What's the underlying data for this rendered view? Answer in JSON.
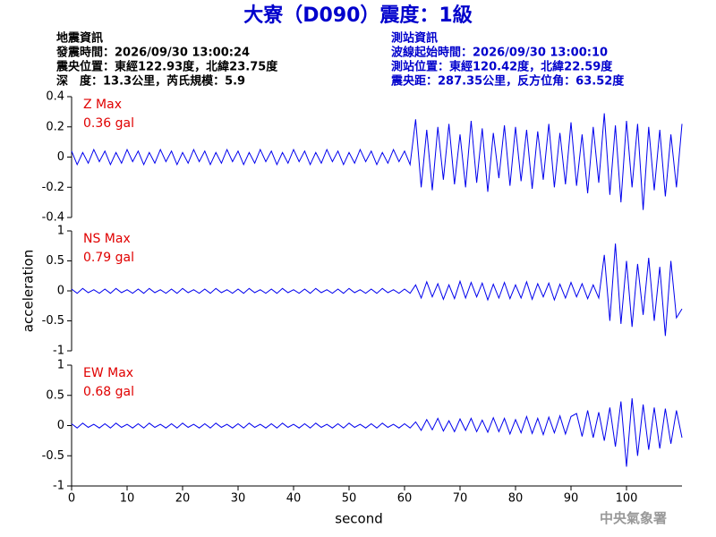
{
  "header": {
    "title": "大寮（D090）震度：1級",
    "left": [
      "地震資訊",
      "發震時間：2026/09/30 13:00:24",
      "震央位置：東經122.93度，北緯23.75度",
      "深　度：13.3公里，芮氏規模：5.9"
    ],
    "right": [
      "測站資訊",
      "波線起始時間：2026/09/30 13:00:10",
      "測站位置：東經120.42度，北緯22.59度",
      "震央距：287.35公里，反方位角：63.52度"
    ]
  },
  "footer": "中央氣象署",
  "chart_data": [
    {
      "type": "line",
      "title": "Z Max",
      "annotation": "0.36 gal",
      "xlim": [
        0,
        110
      ],
      "ylim": [
        -0.4,
        0.4
      ],
      "yticks": [
        -0.4,
        -0.2,
        0,
        0.2,
        0.4
      ],
      "x": [
        0,
        1,
        2,
        3,
        4,
        5,
        6,
        7,
        8,
        9,
        10,
        11,
        12,
        13,
        14,
        15,
        16,
        17,
        18,
        19,
        20,
        21,
        22,
        23,
        24,
        25,
        26,
        27,
        28,
        29,
        30,
        31,
        32,
        33,
        34,
        35,
        36,
        37,
        38,
        39,
        40,
        41,
        42,
        43,
        44,
        45,
        46,
        47,
        48,
        49,
        50,
        51,
        52,
        53,
        54,
        55,
        56,
        57,
        58,
        59,
        60,
        61,
        62,
        63,
        64,
        65,
        66,
        67,
        68,
        69,
        70,
        71,
        72,
        73,
        74,
        75,
        76,
        77,
        78,
        79,
        80,
        81,
        82,
        83,
        84,
        85,
        86,
        87,
        88,
        89,
        90,
        91,
        92,
        93,
        94,
        95,
        96,
        97,
        98,
        99,
        100,
        101,
        102,
        103,
        104,
        105,
        106,
        107,
        108,
        109,
        110
      ],
      "series": [
        {
          "color": "#0000ee",
          "values": [
            0.04,
            -0.05,
            0.03,
            -0.04,
            0.05,
            -0.03,
            0.04,
            -0.05,
            0.03,
            -0.04,
            0.05,
            -0.03,
            0.04,
            -0.05,
            0.03,
            -0.04,
            0.05,
            -0.03,
            0.04,
            -0.05,
            0.03,
            -0.04,
            0.05,
            -0.03,
            0.04,
            -0.05,
            0.03,
            -0.04,
            0.05,
            -0.03,
            0.04,
            -0.05,
            0.03,
            -0.04,
            0.05,
            -0.03,
            0.04,
            -0.05,
            0.03,
            -0.04,
            0.05,
            -0.03,
            0.04,
            -0.05,
            0.03,
            -0.04,
            0.05,
            -0.03,
            0.04,
            -0.05,
            0.03,
            -0.04,
            0.05,
            -0.03,
            0.04,
            -0.05,
            0.03,
            -0.04,
            0.05,
            -0.03,
            0.04,
            -0.05,
            0.25,
            -0.2,
            0.18,
            -0.22,
            0.2,
            -0.15,
            0.22,
            -0.18,
            0.15,
            -0.2,
            0.24,
            -0.17,
            0.19,
            -0.23,
            0.16,
            -0.14,
            0.21,
            -0.19,
            0.2,
            -0.16,
            0.18,
            -0.21,
            0.17,
            -0.15,
            0.22,
            -0.2,
            0.16,
            -0.18,
            0.23,
            -0.19,
            0.15,
            -0.24,
            0.2,
            -0.17,
            0.29,
            -0.25,
            0.21,
            -0.3,
            0.24,
            -0.2,
            0.22,
            -0.35,
            0.2,
            -0.22,
            0.18,
            -0.26,
            0.15,
            -0.2,
            0.22
          ]
        }
      ]
    },
    {
      "type": "line",
      "title": "NS Max",
      "annotation": "0.79 gal",
      "ylabel": "acceleration",
      "xlim": [
        0,
        110
      ],
      "ylim": [
        -1,
        1
      ],
      "yticks": [
        -1,
        -0.5,
        0,
        0.5,
        1
      ],
      "x": [
        0,
        1,
        2,
        3,
        4,
        5,
        6,
        7,
        8,
        9,
        10,
        11,
        12,
        13,
        14,
        15,
        16,
        17,
        18,
        19,
        20,
        21,
        22,
        23,
        24,
        25,
        26,
        27,
        28,
        29,
        30,
        31,
        32,
        33,
        34,
        35,
        36,
        37,
        38,
        39,
        40,
        41,
        42,
        43,
        44,
        45,
        46,
        47,
        48,
        49,
        50,
        51,
        52,
        53,
        54,
        55,
        56,
        57,
        58,
        59,
        60,
        61,
        62,
        63,
        64,
        65,
        66,
        67,
        68,
        69,
        70,
        71,
        72,
        73,
        74,
        75,
        76,
        77,
        78,
        79,
        80,
        81,
        82,
        83,
        84,
        85,
        86,
        87,
        88,
        89,
        90,
        91,
        92,
        93,
        94,
        95,
        96,
        97,
        98,
        99,
        100,
        101,
        102,
        103,
        104,
        105,
        106,
        107,
        108,
        109,
        110
      ],
      "series": [
        {
          "color": "#0000ee",
          "values": [
            0.03,
            -0.04,
            0.04,
            -0.03,
            0.02,
            -0.04,
            0.03,
            -0.04,
            0.04,
            -0.03,
            0.02,
            -0.04,
            0.03,
            -0.04,
            0.04,
            -0.03,
            0.02,
            -0.04,
            0.03,
            -0.04,
            0.04,
            -0.03,
            0.02,
            -0.04,
            0.03,
            -0.04,
            0.04,
            -0.03,
            0.02,
            -0.04,
            0.03,
            -0.04,
            0.04,
            -0.03,
            0.02,
            -0.04,
            0.03,
            -0.04,
            0.04,
            -0.03,
            0.02,
            -0.04,
            0.03,
            -0.04,
            0.04,
            -0.03,
            0.02,
            -0.04,
            0.03,
            -0.04,
            0.04,
            -0.03,
            0.02,
            -0.04,
            0.03,
            -0.04,
            0.04,
            -0.03,
            0.02,
            -0.04,
            0.03,
            -0.04,
            0.1,
            -0.12,
            0.15,
            -0.1,
            0.12,
            -0.14,
            0.1,
            -0.13,
            0.16,
            -0.12,
            0.14,
            -0.1,
            0.13,
            -0.15,
            0.11,
            -0.12,
            0.14,
            -0.13,
            0.1,
            -0.12,
            0.15,
            -0.14,
            0.12,
            -0.1,
            0.13,
            -0.15,
            0.11,
            -0.12,
            0.14,
            -0.1,
            0.12,
            -0.13,
            0.1,
            -0.12,
            0.6,
            -0.5,
            0.79,
            -0.55,
            0.5,
            -0.6,
            0.45,
            -0.4,
            0.55,
            -0.5,
            0.4,
            -0.75,
            0.5,
            -0.45,
            -0.3
          ]
        }
      ]
    },
    {
      "type": "line",
      "title": "EW Max",
      "annotation": "0.68 gal",
      "xlabel": "second",
      "xlim": [
        0,
        110
      ],
      "ylim": [
        -1,
        1
      ],
      "yticks": [
        -1,
        -0.5,
        0,
        0.5,
        1
      ],
      "xticks": [
        0,
        10,
        20,
        30,
        40,
        50,
        60,
        70,
        80,
        90,
        100
      ],
      "x": [
        0,
        1,
        2,
        3,
        4,
        5,
        6,
        7,
        8,
        9,
        10,
        11,
        12,
        13,
        14,
        15,
        16,
        17,
        18,
        19,
        20,
        21,
        22,
        23,
        24,
        25,
        26,
        27,
        28,
        29,
        30,
        31,
        32,
        33,
        34,
        35,
        36,
        37,
        38,
        39,
        40,
        41,
        42,
        43,
        44,
        45,
        46,
        47,
        48,
        49,
        50,
        51,
        52,
        53,
        54,
        55,
        56,
        57,
        58,
        59,
        60,
        61,
        62,
        63,
        64,
        65,
        66,
        67,
        68,
        69,
        70,
        71,
        72,
        73,
        74,
        75,
        76,
        77,
        78,
        79,
        80,
        81,
        82,
        83,
        84,
        85,
        86,
        87,
        88,
        89,
        90,
        91,
        92,
        93,
        94,
        95,
        96,
        97,
        98,
        99,
        100,
        101,
        102,
        103,
        104,
        105,
        106,
        107,
        108,
        109,
        110
      ],
      "series": [
        {
          "color": "#0000ee",
          "values": [
            0.03,
            -0.04,
            0.04,
            -0.03,
            0.02,
            -0.04,
            0.03,
            -0.04,
            0.04,
            -0.03,
            0.02,
            -0.04,
            0.03,
            -0.04,
            0.04,
            -0.03,
            0.02,
            -0.04,
            0.03,
            -0.04,
            0.04,
            -0.03,
            0.02,
            -0.04,
            0.03,
            -0.04,
            0.04,
            -0.03,
            0.02,
            -0.04,
            0.03,
            -0.04,
            0.04,
            -0.03,
            0.02,
            -0.04,
            0.03,
            -0.04,
            0.04,
            -0.03,
            0.02,
            -0.04,
            0.03,
            -0.04,
            0.04,
            -0.03,
            0.02,
            -0.04,
            0.03,
            -0.04,
            0.04,
            -0.03,
            0.02,
            -0.04,
            0.03,
            -0.04,
            0.04,
            -0.03,
            0.02,
            -0.04,
            0.03,
            -0.04,
            0.06,
            -0.08,
            0.1,
            -0.07,
            0.12,
            -0.09,
            0.08,
            -0.1,
            0.11,
            -0.08,
            0.12,
            -0.1,
            0.09,
            -0.11,
            0.13,
            -0.1,
            0.12,
            -0.14,
            0.1,
            -0.12,
            0.15,
            -0.13,
            0.12,
            -0.15,
            0.14,
            -0.12,
            0.16,
            -0.14,
            0.15,
            0.2,
            -0.18,
            0.25,
            -0.2,
            0.22,
            -0.25,
            0.3,
            -0.35,
            0.4,
            -0.68,
            0.45,
            -0.5,
            0.35,
            -0.4,
            0.3,
            -0.38,
            0.28,
            -0.3,
            0.25,
            -0.2
          ]
        }
      ]
    }
  ]
}
